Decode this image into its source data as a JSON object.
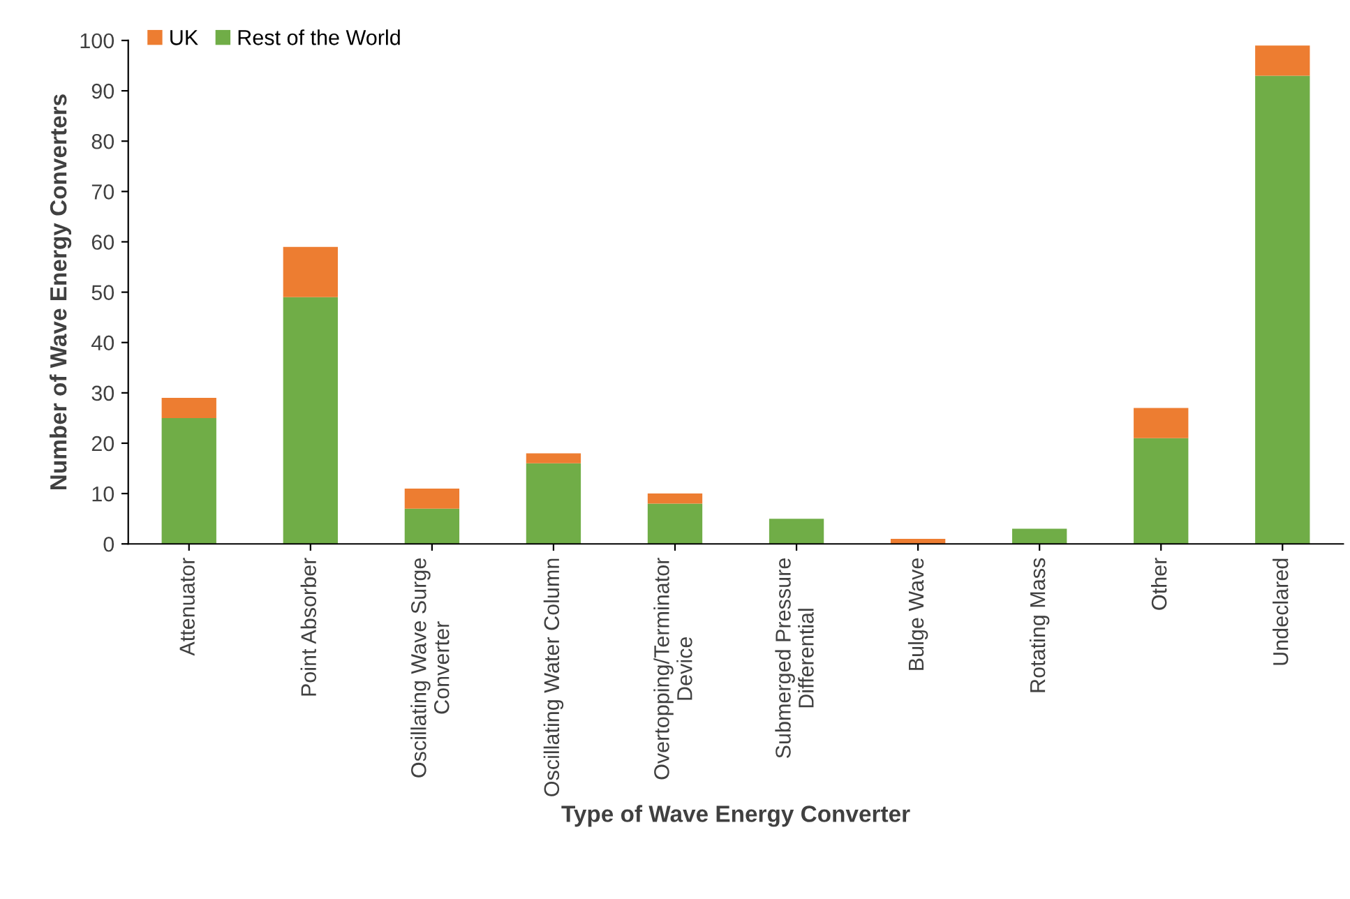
{
  "chart_data": {
    "type": "bar",
    "stacked": true,
    "xlabel": "Type of Wave Energy Converter",
    "ylabel": "Number of Wave Energy Converters",
    "categories": [
      "Attenuator",
      "Point Absorber",
      "Oscillating Wave Surge\nConverter",
      "Oscillating Water Column",
      "Overtopping/Terminator\nDevice",
      "Submerged Pressure\nDifferential",
      "Bulge Wave",
      "Rotating Mass",
      "Other",
      "Undeclared"
    ],
    "series": [
      {
        "name": "Rest of the World",
        "color": "#70ad47",
        "values": [
          25,
          49,
          7,
          16,
          8,
          5,
          0,
          3,
          21,
          93
        ]
      },
      {
        "name": "UK",
        "color": "#ed7d31",
        "values": [
          4,
          10,
          4,
          2,
          2,
          0,
          1,
          0,
          6,
          6
        ]
      }
    ],
    "ylim": [
      0,
      100
    ],
    "yticks": [
      0,
      10,
      20,
      30,
      40,
      50,
      60,
      70,
      80,
      90,
      100
    ],
    "grid": false,
    "legend": "top left"
  }
}
